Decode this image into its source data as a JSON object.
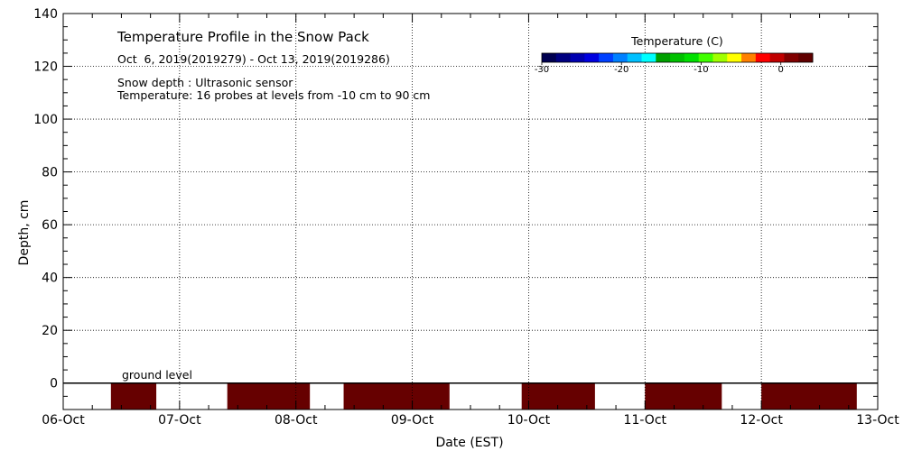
{
  "chart_data": {
    "type": "heatmap",
    "title": "Temperature Profile in the Snow Pack",
    "subtitle": "Oct  6, 2019(2019279) - Oct 13, 2019(2019286)",
    "annotations": [
      "Snow depth : Ultrasonic sensor",
      "Temperature: 16 probes at levels from -10 cm to 90 cm",
      "ground level"
    ],
    "xlabel": "Date (EST)",
    "ylabel": "Depth, cm",
    "x_range": [
      "2019-10-06",
      "2019-10-13"
    ],
    "x_tick_labels": [
      "06-Oct",
      "07-Oct",
      "08-Oct",
      "09-Oct",
      "10-Oct",
      "11-Oct",
      "12-Oct",
      "13-Oct"
    ],
    "y_range": [
      -10,
      140
    ],
    "y_ticks": [
      0,
      20,
      40,
      60,
      80,
      100,
      120,
      140
    ],
    "grid": true,
    "ground_level": 0,
    "colorbar": {
      "title": "Temperature (C)",
      "range": [
        -30,
        4
      ],
      "tick_values": [
        -30,
        -20,
        -10,
        0
      ],
      "tick_labels": [
        "-30",
        "-20",
        "-10",
        "0"
      ],
      "colors": [
        "#000050",
        "#000080",
        "#0000b0",
        "#0000e0",
        "#0040ff",
        "#0080ff",
        "#00c0ff",
        "#00ffff",
        "#00a000",
        "#00c000",
        "#00e000",
        "#40ff00",
        "#a0ff00",
        "#ffff00",
        "#ff8000",
        "#ff0000",
        "#c00000",
        "#800000",
        "#600000"
      ]
    },
    "segments": [
      {
        "start_day": 0.41,
        "end_day": 0.8,
        "depth_top": 0,
        "depth_bottom": -10,
        "temperature": 3,
        "color": "#660000"
      },
      {
        "start_day": 1.41,
        "end_day": 2.12,
        "depth_top": 0,
        "depth_bottom": -10,
        "temperature": 3,
        "color": "#660000"
      },
      {
        "start_day": 2.41,
        "end_day": 3.32,
        "depth_top": 0,
        "depth_bottom": -10,
        "temperature": 3,
        "color": "#660000"
      },
      {
        "start_day": 3.94,
        "end_day": 4.57,
        "depth_top": 0,
        "depth_bottom": -10,
        "temperature": 3,
        "color": "#660000"
      },
      {
        "start_day": 5.0,
        "end_day": 5.66,
        "depth_top": 0,
        "depth_bottom": -10,
        "temperature": 3,
        "color": "#660000"
      },
      {
        "start_day": 6.0,
        "end_day": 6.82,
        "depth_top": 0,
        "depth_bottom": -10,
        "temperature": 3,
        "color": "#660000"
      }
    ],
    "series_colors": {
      "grid": "#000000",
      "ground_line": "#000000"
    }
  }
}
